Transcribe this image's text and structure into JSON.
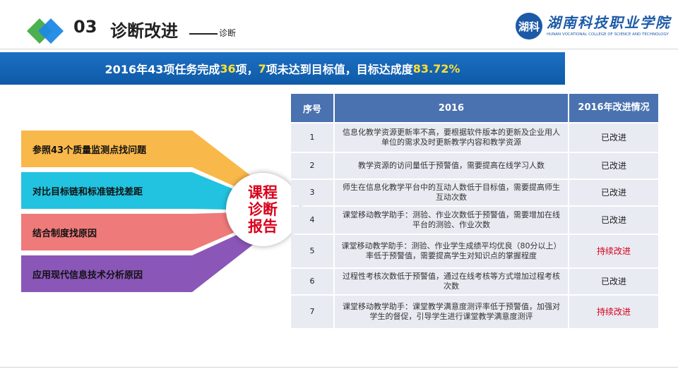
{
  "header": {
    "section_number": "03",
    "section_title": "诊断改进",
    "section_subtitle": "诊断",
    "college_seal_text": "湖科",
    "college_name_cn": "湖南科技职业学院",
    "college_name_en": "HUNAN VOCATIONAL COLLEGE OF SCIENCE AND TECHNOLOGY"
  },
  "banner": {
    "part1": "2016年43项任务完成",
    "done_count": "36",
    "part2": "项，",
    "undone_count": "7",
    "part3": "项未达到目标值，目标达成度",
    "rate": "83.72%"
  },
  "funnel": {
    "items": [
      {
        "label": "参照43个质量监测点找问题",
        "color": "#f9b84a"
      },
      {
        "label": "对比目标链和标准链找差距",
        "color": "#22c3e0"
      },
      {
        "label": "结合制度找原因",
        "color": "#ef7a7a"
      },
      {
        "label": "应用现代信息技术分析原因",
        "color": "#8a56b8"
      }
    ],
    "center_text": "课程诊断报告"
  },
  "table": {
    "headers": [
      "序号",
      "2016",
      "2016年改进情况"
    ],
    "rows": [
      {
        "no": "1",
        "desc": "信息化教学资源更新率不高，要根据软件版本的更新及企业用人单位的需求及时更新教学内容和教学资源",
        "status": "已改进",
        "highlight": false
      },
      {
        "no": "2",
        "desc": "教学资源的访问量低于预警值，需要提高在线学习人数",
        "status": "已改进",
        "highlight": false
      },
      {
        "no": "3",
        "desc": "师生在信息化教学平台中的互动人数低于目标值，需要提高师生互动次数",
        "status": "已改进",
        "highlight": false
      },
      {
        "no": "4",
        "desc": "课堂移动教学助手：测验、作业次数低于预警值，需要增加在线平台的测验、作业次数",
        "status": "已改进",
        "highlight": false
      },
      {
        "no": "5",
        "desc": "课堂移动教学助手：测验、作业学生成绩平均优良（80分以上）率低于预警值，需要提高学生对知识点的掌握程度",
        "status": "持续改进",
        "highlight": true
      },
      {
        "no": "6",
        "desc": "过程性考核次数低于预警值，通过在线考核等方式增加过程考核次数",
        "status": "已改进",
        "highlight": false
      },
      {
        "no": "7",
        "desc": "课堂移动教学助手：课堂教学满意度测评率低于预警值，加强对学生的督促，引导学生进行课堂教学满意度测评",
        "status": "持续改进",
        "highlight": true
      }
    ]
  }
}
